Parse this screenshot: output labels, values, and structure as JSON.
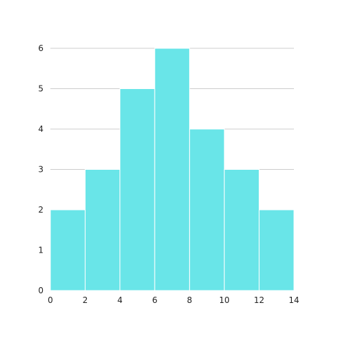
{
  "chart_data": {
    "type": "bar",
    "title": "",
    "xlabel": "",
    "ylabel": "",
    "bins": [
      {
        "x0": 0,
        "x1": 2,
        "value": 2
      },
      {
        "x0": 2,
        "x1": 4,
        "value": 3
      },
      {
        "x0": 4,
        "x1": 6,
        "value": 5
      },
      {
        "x0": 6,
        "x1": 8,
        "value": 6
      },
      {
        "x0": 8,
        "x1": 10,
        "value": 4
      },
      {
        "x0": 10,
        "x1": 12,
        "value": 3
      },
      {
        "x0": 12,
        "x1": 14,
        "value": 2
      }
    ],
    "xlim": [
      0,
      14
    ],
    "ylim": [
      0,
      6
    ],
    "x_ticks": [
      "0",
      "2",
      "4",
      "6",
      "8",
      "10",
      "12",
      "14"
    ],
    "y_ticks": [
      "0",
      "1",
      "2",
      "3",
      "4",
      "5",
      "6"
    ],
    "grid": "horizontal",
    "bar_color": "#69E5E8",
    "grid_color": "#cccccc"
  }
}
